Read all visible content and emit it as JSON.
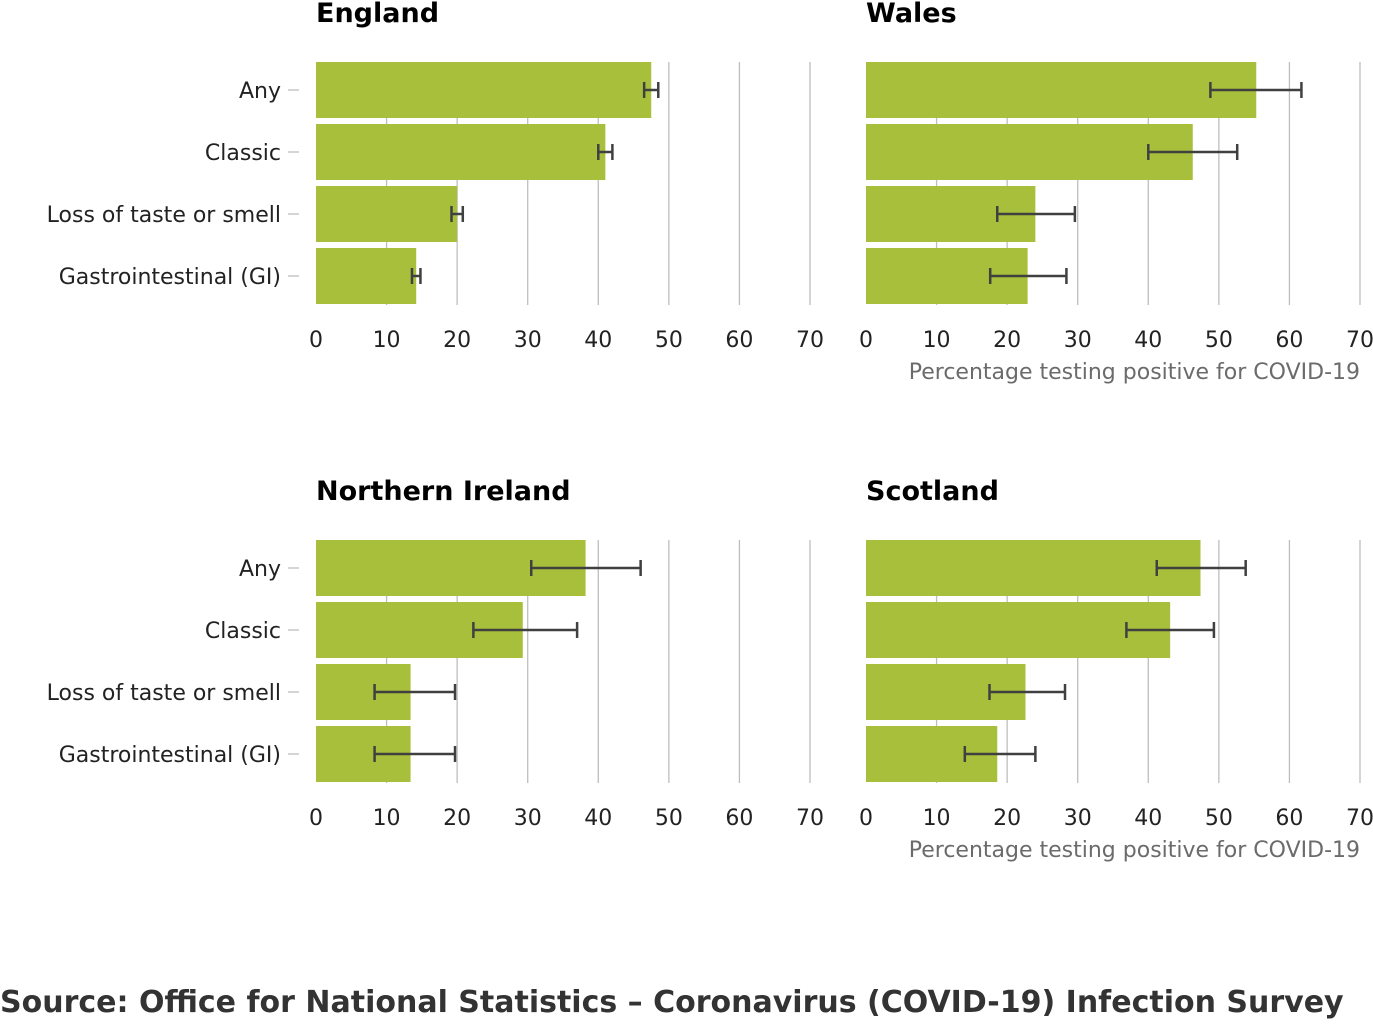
{
  "chart_data": [
    {
      "type": "bar",
      "orientation": "horizontal",
      "title": "England",
      "categories": [
        "Any",
        "Classic",
        "Loss of taste or smell",
        "Gastrointestinal (GI)"
      ],
      "values": [
        47.5,
        41.0,
        20.0,
        14.2
      ],
      "error_low": [
        46.5,
        40.0,
        19.2,
        13.6
      ],
      "error_high": [
        48.5,
        42.0,
        20.8,
        14.8
      ],
      "xlim": [
        0,
        70
      ],
      "xticks": [
        0,
        10,
        20,
        30,
        40,
        50,
        60,
        70
      ],
      "xlabel": ""
    },
    {
      "type": "bar",
      "orientation": "horizontal",
      "title": "Wales",
      "categories": [
        "Any",
        "Classic",
        "Loss of taste or smell",
        "Gastrointestinal (GI)"
      ],
      "values": [
        55.3,
        46.3,
        24.0,
        22.9
      ],
      "error_low": [
        48.8,
        40.0,
        18.6,
        17.6
      ],
      "error_high": [
        61.7,
        52.6,
        29.6,
        28.4
      ],
      "xlim": [
        0,
        70
      ],
      "xticks": [
        0,
        10,
        20,
        30,
        40,
        50,
        60,
        70
      ],
      "xlabel": "Percentage testing positive for COVID-19"
    },
    {
      "type": "bar",
      "orientation": "horizontal",
      "title": "Northern Ireland",
      "categories": [
        "Any",
        "Classic",
        "Loss of taste or smell",
        "Gastrointestinal (GI)"
      ],
      "values": [
        38.2,
        29.3,
        13.4,
        13.4
      ],
      "error_low": [
        30.5,
        22.3,
        8.3,
        8.3
      ],
      "error_high": [
        46.0,
        37.0,
        19.7,
        19.7
      ],
      "xlim": [
        0,
        70
      ],
      "xticks": [
        0,
        10,
        20,
        30,
        40,
        50,
        60,
        70
      ],
      "xlabel": ""
    },
    {
      "type": "bar",
      "orientation": "horizontal",
      "title": "Scotland",
      "categories": [
        "Any",
        "Classic",
        "Loss of taste or smell",
        "Gastrointestinal (GI)"
      ],
      "values": [
        47.4,
        43.1,
        22.6,
        18.6
      ],
      "error_low": [
        41.2,
        36.9,
        17.5,
        14.0
      ],
      "error_high": [
        53.8,
        49.3,
        28.2,
        24.0
      ],
      "xlim": [
        0,
        70
      ],
      "xticks": [
        0,
        10,
        20,
        30,
        40,
        50,
        60,
        70
      ],
      "xlabel": "Percentage testing positive for COVID-19"
    }
  ],
  "colors": {
    "bar": "#a8bf3b",
    "error_bar": "#404040",
    "grid": "#bebebe",
    "title": "#000000",
    "tick_label": "#222222",
    "axis_label": "#6b6b6b",
    "source": "#333333"
  },
  "source": "Source: Office for National Statistics – Coronavirus (COVID-19) Infection Survey"
}
